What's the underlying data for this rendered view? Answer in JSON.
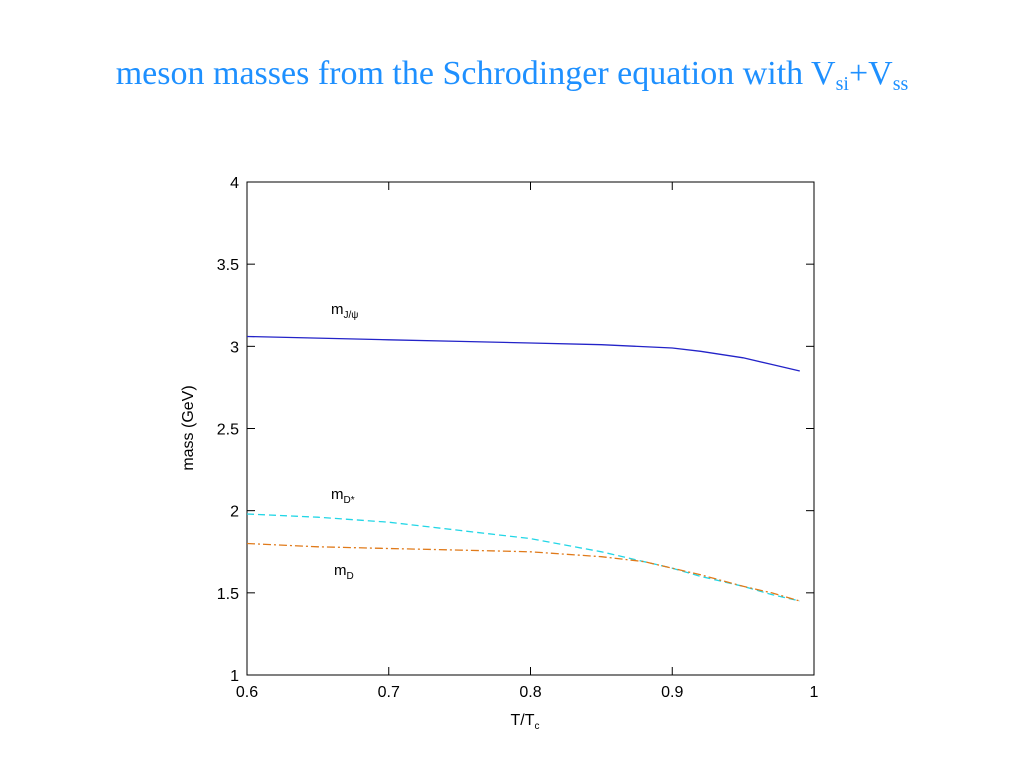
{
  "title": {
    "main": "meson masses from the Schrodinger equation with V",
    "sub1": "si",
    "mid": "+V",
    "sub2": "ss"
  },
  "chart_data": {
    "type": "line",
    "title": "",
    "xlabel": "T/T",
    "xlabel_sub": "c",
    "ylabel": "mass (GeV)",
    "xlim": [
      0.6,
      1.0
    ],
    "ylim": [
      1.0,
      4.0
    ],
    "xticks": [
      0.6,
      0.7,
      0.8,
      0.9,
      1.0
    ],
    "xtick_labels": [
      "0.6",
      "0.7",
      "0.8",
      "0.9",
      "1"
    ],
    "yticks": [
      1.0,
      1.5,
      2.0,
      2.5,
      3.0,
      3.5,
      4.0
    ],
    "ytick_labels": [
      "1",
      "1.5",
      "2",
      "2.5",
      "3",
      "3.5",
      "4"
    ],
    "grid": false,
    "series": [
      {
        "name": "m",
        "name_sub": "J/ψ",
        "color": "#2323c8",
        "style": "solid",
        "x": [
          0.6,
          0.65,
          0.7,
          0.75,
          0.8,
          0.85,
          0.9,
          0.92,
          0.95,
          0.97,
          0.99
        ],
        "y": [
          3.06,
          3.05,
          3.04,
          3.03,
          3.02,
          3.01,
          2.99,
          2.97,
          2.93,
          2.89,
          2.85
        ]
      },
      {
        "name": "m",
        "name_sub": "D*",
        "color": "#22d6e6",
        "style": "dashed",
        "x": [
          0.6,
          0.65,
          0.7,
          0.75,
          0.8,
          0.85,
          0.88,
          0.9,
          0.92,
          0.95,
          0.97,
          0.99
        ],
        "y": [
          1.98,
          1.96,
          1.93,
          1.88,
          1.83,
          1.75,
          1.69,
          1.65,
          1.6,
          1.54,
          1.49,
          1.45
        ]
      },
      {
        "name": "m",
        "name_sub": "D",
        "color": "#e07a1a",
        "style": "dashdot",
        "x": [
          0.6,
          0.65,
          0.7,
          0.75,
          0.8,
          0.85,
          0.88,
          0.9,
          0.92,
          0.95,
          0.97,
          0.99
        ],
        "y": [
          1.8,
          1.78,
          1.77,
          1.76,
          1.75,
          1.72,
          1.69,
          1.65,
          1.61,
          1.54,
          1.5,
          1.45
        ]
      }
    ]
  }
}
